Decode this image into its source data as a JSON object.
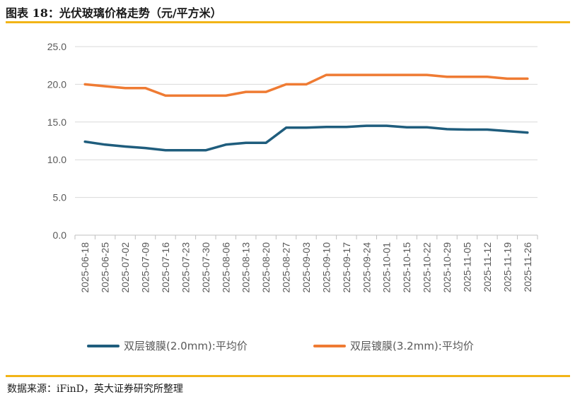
{
  "figure": {
    "title": "图表 18：光伏玻璃价格走势（元/平方米）",
    "source": "数据来源：iFinD，英大证券研究所整理"
  },
  "colors": {
    "accent_rule": "#f2b417",
    "series_2_0mm": "#1f5d7d",
    "series_3_2mm": "#ef7b33",
    "grid": "#d9d9d9",
    "axis_text": "#595959"
  },
  "chart_data": {
    "type": "line",
    "title": "",
    "xlabel": "",
    "ylabel": "",
    "ylim": [
      0,
      25
    ],
    "yticks": [
      "0.0",
      "5.0",
      "10.0",
      "15.0",
      "20.0",
      "25.0"
    ],
    "grid": true,
    "legend_position": "bottom",
    "categories": [
      "2025-06-18",
      "2025-06-25",
      "2025-07-02",
      "2025-07-09",
      "2025-07-16",
      "2025-07-23",
      "2025-07-30",
      "2025-08-06",
      "2025-08-13",
      "2025-08-20",
      "2025-08-27",
      "2025-09-03",
      "2025-09-10",
      "2025-09-17",
      "2025-09-24",
      "2025-10-01",
      "2025-10-15",
      "2025-10-22",
      "2025-10-29",
      "2025-11-05",
      "2025-11-12",
      "2025-11-19",
      "2025-11-26"
    ],
    "series": [
      {
        "name": "双层镀膜(2.0mm):平均价",
        "color": "#1f5d7d",
        "values": [
          12.4,
          12.0,
          11.75,
          11.55,
          11.25,
          11.25,
          11.25,
          12.0,
          12.25,
          12.25,
          14.25,
          14.25,
          14.35,
          14.35,
          14.5,
          14.5,
          14.3,
          14.3,
          14.05,
          14.0,
          14.0,
          13.8,
          13.6
        ]
      },
      {
        "name": "双层镀膜(3.2mm):平均价",
        "color": "#ef7b33",
        "values": [
          20.0,
          19.75,
          19.5,
          19.5,
          18.5,
          18.5,
          18.5,
          18.5,
          19.0,
          19.0,
          20.0,
          20.0,
          21.25,
          21.25,
          21.25,
          21.25,
          21.25,
          21.25,
          21.0,
          21.0,
          21.0,
          20.75,
          20.75
        ]
      }
    ]
  }
}
